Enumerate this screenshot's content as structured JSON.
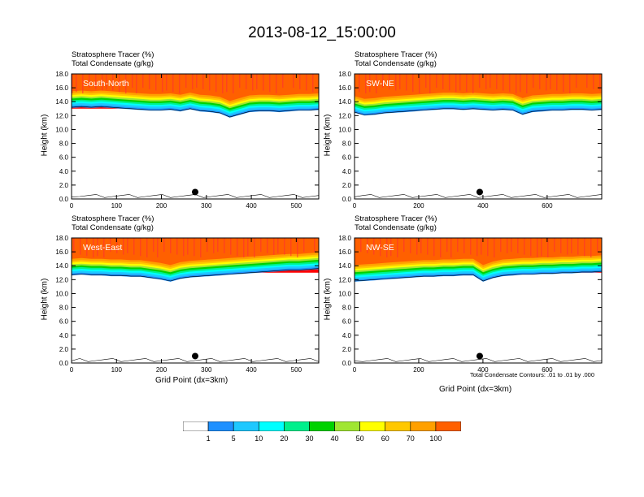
{
  "title": "2013-08-12_15:00:00",
  "y_axis_label": "Height (km)",
  "x_axis_label": "Grid Point (dx=3km)",
  "contour_note": "Total Condensate Contours: .01 to .01 by .000",
  "contour_label": ".01",
  "colorbar": {
    "levels": [
      "1",
      "5",
      "10",
      "20",
      "30",
      "40",
      "50",
      "60",
      "70",
      "100"
    ],
    "colors": [
      "#ffffff",
      "#1e90ff",
      "#1ec8ff",
      "#00ffff",
      "#00f08c",
      "#00d200",
      "#a0e632",
      "#ffff00",
      "#ffc800",
      "#ffa000",
      "#ff6000",
      "#ff0000"
    ]
  },
  "chart_data": [
    {
      "type": "heatmap",
      "panel_label": "South-North",
      "title": "Stratosphere Tracer   (%)",
      "subtitle": "Total Condensate   (g/kg)",
      "xlabel": "",
      "ylabel": "Height (km)",
      "xlim": [
        0,
        550
      ],
      "ylim": [
        0,
        18
      ],
      "xticks": [
        "0",
        "100",
        "200",
        "300",
        "400",
        "500"
      ],
      "xtick_values": [
        0,
        100,
        200,
        300,
        400,
        500
      ],
      "yticks": [
        "0.0",
        "2.0",
        "4.0",
        "6.0",
        "8.0",
        "10.0",
        "12.0",
        "14.0",
        "16.0",
        "18.0"
      ],
      "tracer_base_km": [
        13.4,
        13.5,
        13.4,
        13.5,
        13.4,
        13.3,
        13.2,
        13.1,
        13.0,
        13.0,
        13.1,
        12.9,
        13.2,
        12.9,
        12.8,
        12.6,
        12.0,
        12.4,
        12.8,
        12.9,
        12.9,
        12.8,
        12.9,
        13.0,
        13.0,
        13.1
      ],
      "marker_x": 275
    },
    {
      "type": "heatmap",
      "panel_label": "SW-NE",
      "title": "Stratosphere Tracer   (%)",
      "subtitle": "Total Condensate   (g/kg)",
      "xlabel": "",
      "ylabel": "Height (km)",
      "xlim": [
        0,
        770
      ],
      "ylim": [
        0,
        18
      ],
      "xticks": [
        "0",
        "200",
        "400",
        "600"
      ],
      "xtick_values": [
        0,
        200,
        400,
        600
      ],
      "yticks": [
        "0.0",
        "2.0",
        "4.0",
        "6.0",
        "8.0",
        "10.0",
        "12.0",
        "14.0",
        "16.0",
        "18.0"
      ],
      "tracer_base_km": [
        12.7,
        12.3,
        12.4,
        12.6,
        12.7,
        12.8,
        12.9,
        13.0,
        13.1,
        13.2,
        13.2,
        13.1,
        13.2,
        13.1,
        13.0,
        13.1,
        13.0,
        12.4,
        12.8,
        12.9,
        13.0,
        13.0,
        13.1,
        13.1,
        13.0,
        13.1
      ],
      "marker_x": 390
    },
    {
      "type": "heatmap",
      "panel_label": "West-East",
      "title": "Stratosphere Tracer   (%)",
      "subtitle": "Total Condensate   (g/kg)",
      "xlabel": "Grid Point (dx=3km)",
      "ylabel": "Height (km)",
      "xlim": [
        0,
        550
      ],
      "ylim": [
        0,
        18
      ],
      "xticks": [
        "0",
        "100",
        "200",
        "300",
        "400",
        "500"
      ],
      "xtick_values": [
        0,
        100,
        200,
        300,
        400,
        500
      ],
      "yticks": [
        "0.0",
        "2.0",
        "4.0",
        "6.0",
        "8.0",
        "10.0",
        "12.0",
        "14.0",
        "16.0",
        "18.0"
      ],
      "tracer_base_km": [
        12.9,
        13.0,
        12.9,
        12.9,
        12.8,
        12.8,
        12.7,
        12.7,
        12.5,
        12.3,
        12.0,
        12.4,
        12.6,
        12.7,
        12.8,
        12.9,
        13.0,
        13.1,
        13.2,
        13.3,
        13.4,
        13.5,
        13.6,
        13.6,
        13.7,
        13.8
      ],
      "marker_x": 275
    },
    {
      "type": "heatmap",
      "panel_label": "NW-SE",
      "title": "Stratosphere Tracer   (%)",
      "subtitle": "Total Condensate   (g/kg)",
      "xlabel": "Grid Point (dx=3km)",
      "ylabel": "Height (km)",
      "xlim": [
        0,
        770
      ],
      "ylim": [
        0,
        18
      ],
      "xticks": [
        "0",
        "200",
        "400",
        "600"
      ],
      "xtick_values": [
        0,
        200,
        400,
        600
      ],
      "yticks": [
        "0.0",
        "2.0",
        "4.0",
        "6.0",
        "8.0",
        "10.0",
        "12.0",
        "14.0",
        "16.0",
        "18.0"
      ],
      "tracer_base_km": [
        12.0,
        12.1,
        12.2,
        12.3,
        12.4,
        12.5,
        12.6,
        12.7,
        12.7,
        12.8,
        12.8,
        12.9,
        12.9,
        12.0,
        12.5,
        12.8,
        12.9,
        13.0,
        13.0,
        13.1,
        13.1,
        13.2,
        13.2,
        13.3,
        13.3,
        13.4
      ],
      "marker_x": 390
    }
  ]
}
